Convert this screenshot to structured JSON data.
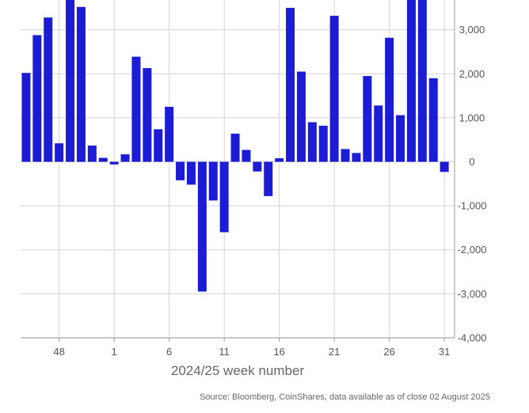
{
  "chart_data": {
    "type": "bar",
    "title": "",
    "xlabel": "2024/25 week number",
    "ylabel": "",
    "source": "Source: Bloomberg, CoinShares, data available as of close 02 August 2025",
    "ylim": [
      -4000,
      3750
    ],
    "yticks": [
      3000,
      2000,
      1000,
      0,
      -1000,
      -2000,
      -3000,
      -4000
    ],
    "ytick_labels": [
      "3,000",
      "2,000",
      "1,000",
      "0",
      "-1,000",
      "-2,000",
      "-3,000",
      "-4,000"
    ],
    "weeks": [
      45,
      46,
      47,
      48,
      49,
      50,
      51,
      52,
      1,
      2,
      3,
      4,
      5,
      6,
      7,
      8,
      9,
      10,
      11,
      12,
      13,
      14,
      15,
      16,
      17,
      18,
      19,
      20,
      21,
      22,
      23,
      24,
      25,
      26,
      27,
      28,
      29,
      30,
      31
    ],
    "values": [
      2020,
      2880,
      3280,
      420,
      3750,
      3520,
      370,
      90,
      -60,
      170,
      2390,
      2130,
      740,
      1250,
      -420,
      -520,
      -2950,
      -880,
      -1600,
      640,
      270,
      -220,
      -780,
      80,
      3500,
      2050,
      900,
      820,
      3320,
      290,
      200,
      1950,
      1280,
      2820,
      1060,
      3750,
      3750,
      1900,
      -230
    ],
    "xtick_labels": [
      "48",
      "1",
      "6",
      "11",
      "16",
      "21",
      "26",
      "31"
    ],
    "xtick_weeks": [
      48,
      1,
      6,
      11,
      16,
      21,
      26,
      31
    ],
    "bar_color": "#1c1cd4",
    "grid": true
  }
}
